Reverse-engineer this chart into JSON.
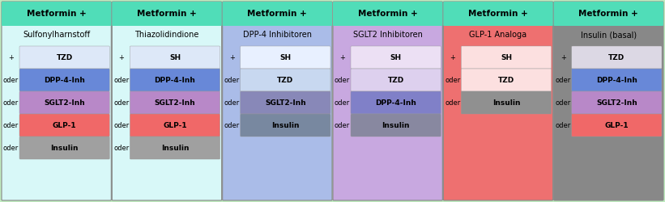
{
  "outer_bg": "#c0ecc0",
  "header_bg": "#50ddb8",
  "columns": [
    {
      "title": "Metformin +",
      "subtitle": "Sulfonylharnstoff",
      "col_bg": "#d8f8f8",
      "rows": [
        {
          "prefix": "+",
          "label": "TZD",
          "color": "#dde8f8"
        },
        {
          "prefix": "oder",
          "label": "DPP-4-Inh",
          "color": "#6888d8"
        },
        {
          "prefix": "oder",
          "label": "SGLT2-Inh",
          "color": "#b888c8"
        },
        {
          "prefix": "oder",
          "label": "GLP-1",
          "color": "#f06868"
        },
        {
          "prefix": "oder",
          "label": "Insulin",
          "color": "#a0a0a0"
        }
      ]
    },
    {
      "title": "Metformin +",
      "subtitle": "Thiazolidindione",
      "col_bg": "#d8f8f8",
      "rows": [
        {
          "prefix": "+",
          "label": "SH",
          "color": "#dde8f8"
        },
        {
          "prefix": "oder",
          "label": "DPP-4-Inh",
          "color": "#6888d8"
        },
        {
          "prefix": "oder",
          "label": "SGLT2-Inh",
          "color": "#b888c8"
        },
        {
          "prefix": "oder",
          "label": "GLP-1",
          "color": "#f06868"
        },
        {
          "prefix": "oder",
          "label": "Insulin",
          "color": "#a0a0a0"
        }
      ]
    },
    {
      "title": "Metformin +",
      "subtitle": "DPP-4 Inhibitoren",
      "col_bg": "#aabce8",
      "rows": [
        {
          "prefix": "+",
          "label": "SH",
          "color": "#e8f0ff"
        },
        {
          "prefix": "oder",
          "label": "TZD",
          "color": "#c8d8f0"
        },
        {
          "prefix": "oder",
          "label": "SGLT2-Inh",
          "color": "#8888b8"
        },
        {
          "prefix": "oder",
          "label": "Insulin",
          "color": "#7888a0"
        }
      ]
    },
    {
      "title": "Metformin +",
      "subtitle": "SGLT2 Inhibitoren",
      "col_bg": "#c8a8e0",
      "rows": [
        {
          "prefix": "+",
          "label": "SH",
          "color": "#ece0f4"
        },
        {
          "prefix": "oder",
          "label": "TZD",
          "color": "#ddd0ee"
        },
        {
          "prefix": "oder",
          "label": "DPP-4-Inh",
          "color": "#8080c8"
        },
        {
          "prefix": "oder",
          "label": "Insulin",
          "color": "#8888a0"
        }
      ]
    },
    {
      "title": "Metformin +",
      "subtitle": "GLP-1 Analoga",
      "col_bg": "#ee7070",
      "rows": [
        {
          "prefix": "+",
          "label": "SH",
          "color": "#fce0e0"
        },
        {
          "prefix": "oder",
          "label": "TZD",
          "color": "#fce0e0"
        },
        {
          "prefix": "oder",
          "label": "Insulin",
          "color": "#909090"
        }
      ]
    },
    {
      "title": "Metformin +",
      "subtitle": "Insulin (basal)",
      "col_bg": "#888888",
      "rows": [
        {
          "prefix": "+",
          "label": "TZD",
          "color": "#dcd8e4"
        },
        {
          "prefix": "oder",
          "label": "DPP-4-Inh",
          "color": "#6888d8"
        },
        {
          "prefix": "oder",
          "label": "SGLT2-Inh",
          "color": "#b888c8"
        },
        {
          "prefix": "oder",
          "label": "GLP-1",
          "color": "#f06868"
        }
      ]
    }
  ]
}
